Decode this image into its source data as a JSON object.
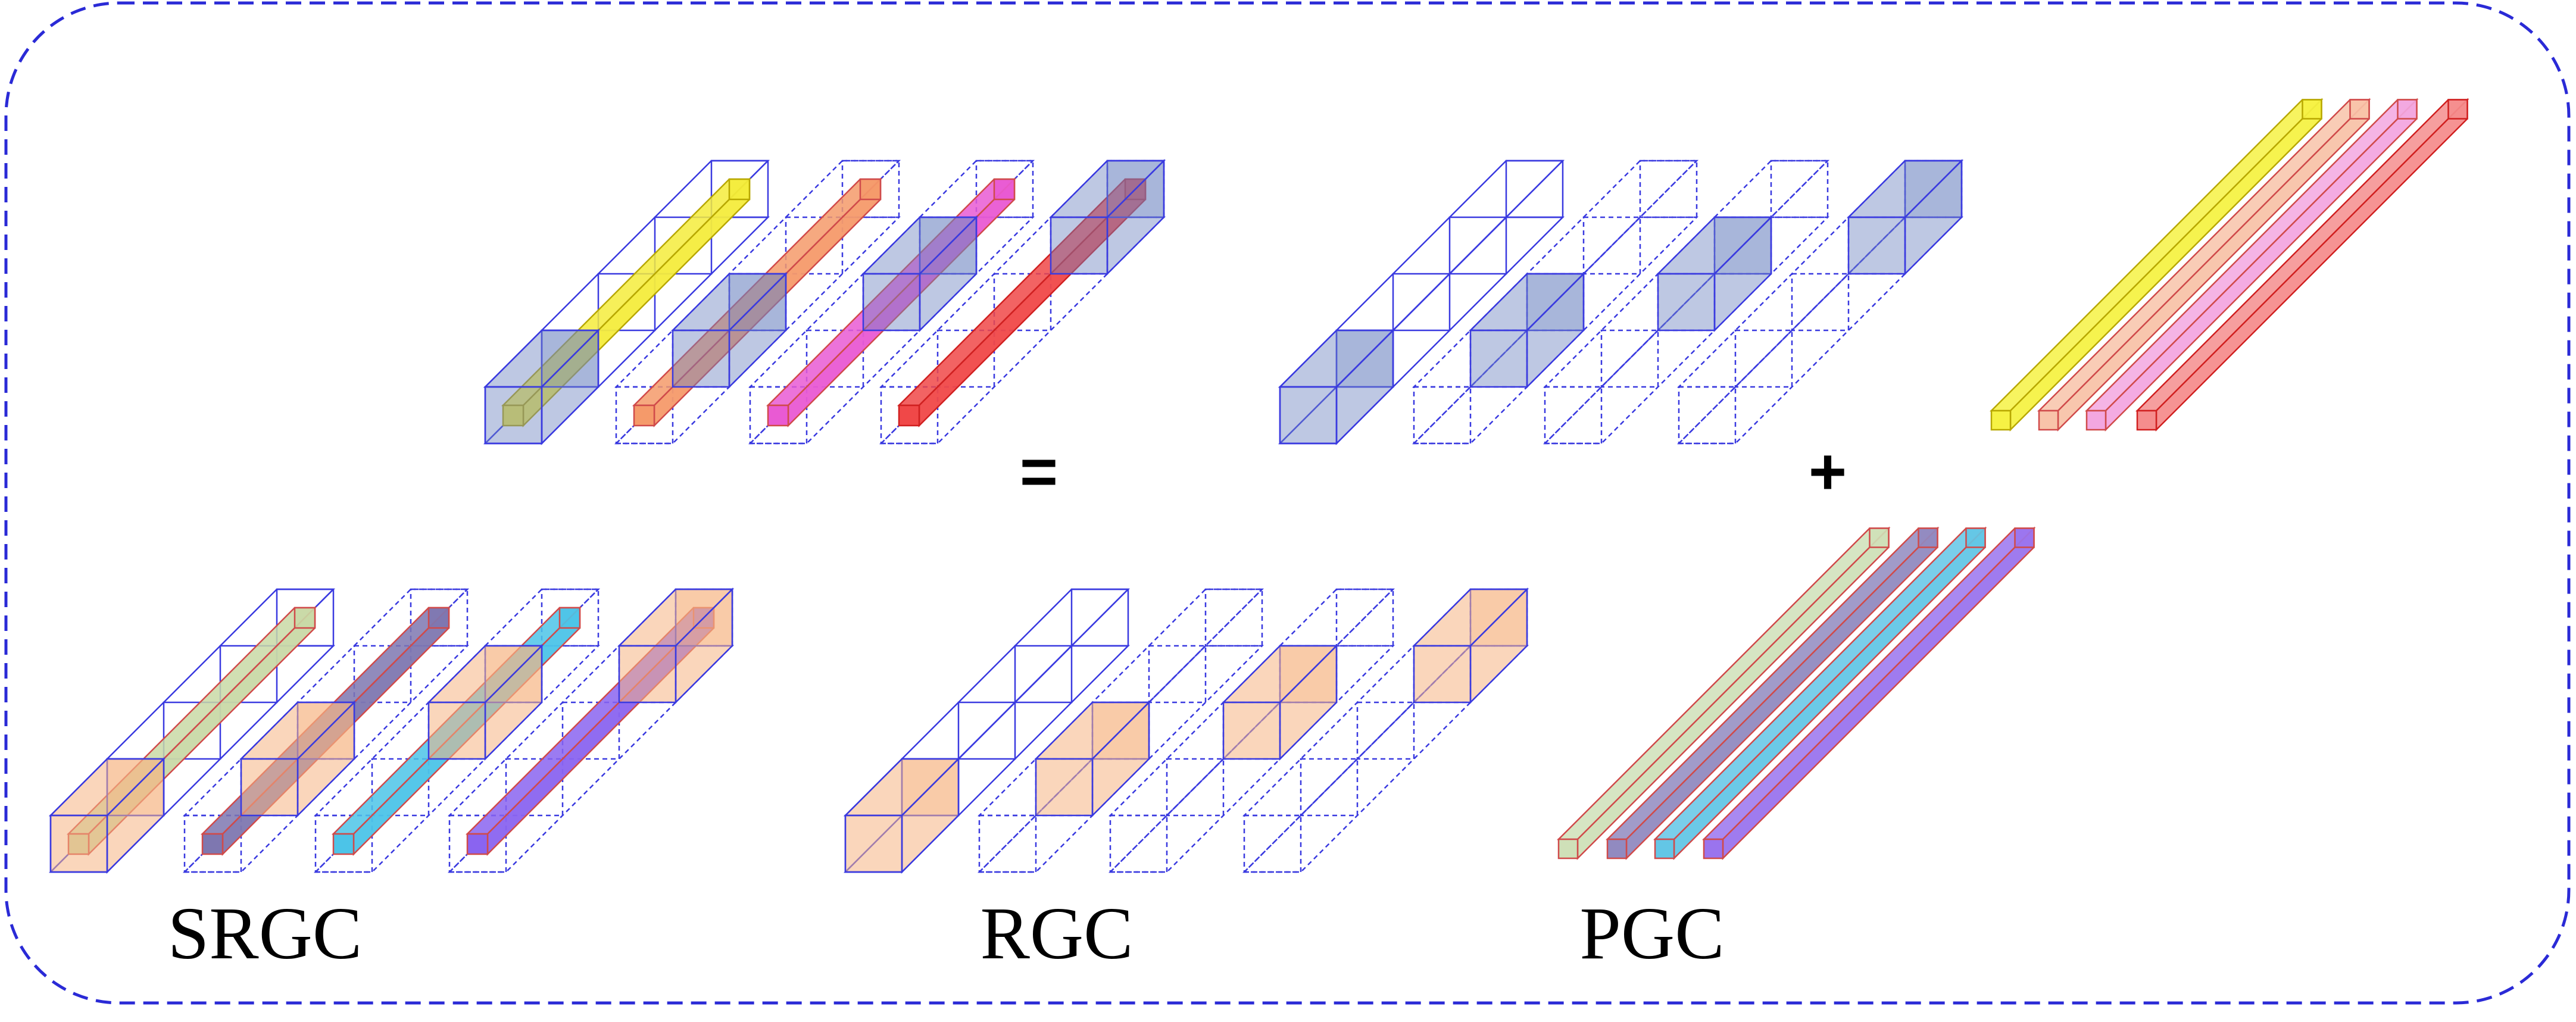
{
  "labels": {
    "srgc": "SRGC",
    "rgc": "RGC",
    "pgc": "PGC",
    "equals": "=",
    "plus": "+"
  },
  "colors": {
    "frame": "#2a2ad6",
    "grid_line": "#3a3ae0",
    "block_blue": "#6f86c0",
    "block_peach": "#f6b483",
    "rods_top": [
      "#f4ec3c",
      "#f59a6a",
      "#e95ad3",
      "#f04848"
    ],
    "rods_bottom": [
      "#c9d9a6",
      "#7e77b0",
      "#4cc4e8",
      "#8a64f0"
    ],
    "free_rods_top": [
      "#f6f244",
      "#f8c3a9",
      "#f3a7e0",
      "#f58d8d"
    ],
    "free_rods_bottom": [
      "#cfe0b8",
      "#918ac0",
      "#63c6e6",
      "#9a74ee"
    ],
    "rod_edge_red": "#e03a3a"
  },
  "diagram": {
    "srgc_top": {
      "rod_colors": [
        "yellow",
        "orange",
        "magenta",
        "red"
      ],
      "block_color": "blue"
    },
    "srgc_bottom": {
      "rod_colors": [
        "sage",
        "slate-purple",
        "cyan",
        "violet"
      ],
      "block_color": "peach"
    },
    "rgc_top": {
      "block_color": "blue"
    },
    "rgc_bottom": {
      "block_color": "peach"
    },
    "pgc_top": {
      "rod_colors": [
        "yellow",
        "peach",
        "pink",
        "salmon"
      ]
    },
    "pgc_bottom": {
      "rod_colors": [
        "sage",
        "slate-purple",
        "cyan",
        "violet"
      ]
    }
  }
}
